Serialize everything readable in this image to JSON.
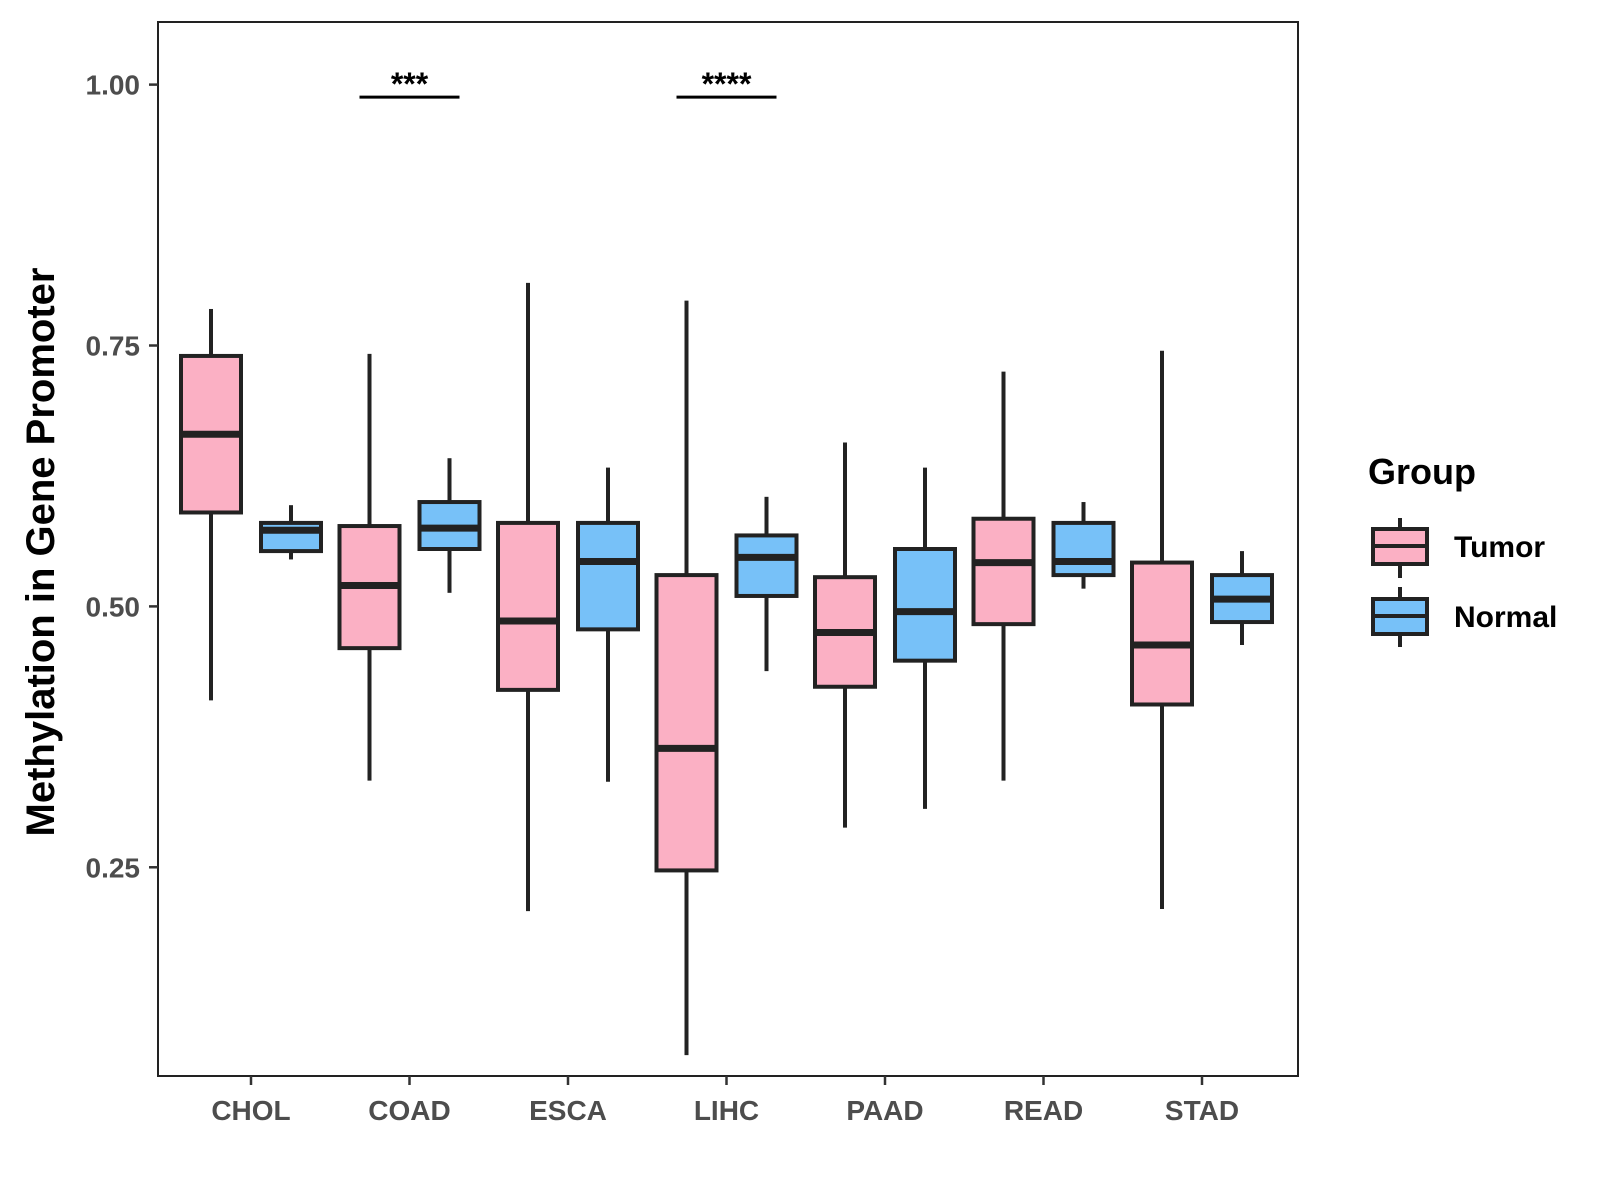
{
  "colors": {
    "tumor": "#fbb0c4",
    "normal": "#77c1f8",
    "stroke": "#222222"
  },
  "chart_data": {
    "type": "box",
    "ylabel": "Methylation in Gene Promoter",
    "xlabel": "",
    "ylim": [
      0.05,
      1.06
    ],
    "yticks": [
      0.25,
      0.5,
      0.75,
      1.0
    ],
    "ytick_labels": [
      "0.25",
      "0.50",
      "0.75",
      "1.00"
    ],
    "categories": [
      "CHOL",
      "COAD",
      "ESCA",
      "LIHC",
      "PAAD",
      "READ",
      "STAD"
    ],
    "legend": {
      "title": "Group",
      "entries": [
        "Tumor",
        "Normal"
      ]
    },
    "series": [
      {
        "name": "Tumor",
        "boxes": [
          {
            "min": 0.41,
            "q1": 0.59,
            "median": 0.665,
            "q3": 0.74,
            "max": 0.785
          },
          {
            "min": 0.333,
            "q1": 0.46,
            "median": 0.52,
            "q3": 0.577,
            "max": 0.742
          },
          {
            "min": 0.208,
            "q1": 0.42,
            "median": 0.486,
            "q3": 0.58,
            "max": 0.81
          },
          {
            "min": 0.07,
            "q1": 0.247,
            "median": 0.364,
            "q3": 0.53,
            "max": 0.793
          },
          {
            "min": 0.288,
            "q1": 0.423,
            "median": 0.475,
            "q3": 0.528,
            "max": 0.657
          },
          {
            "min": 0.333,
            "q1": 0.483,
            "median": 0.542,
            "q3": 0.584,
            "max": 0.725
          },
          {
            "min": 0.21,
            "q1": 0.406,
            "median": 0.463,
            "q3": 0.542,
            "max": 0.745
          }
        ]
      },
      {
        "name": "Normal",
        "boxes": [
          {
            "min": 0.545,
            "q1": 0.553,
            "median": 0.573,
            "q3": 0.58,
            "max": 0.597
          },
          {
            "min": 0.513,
            "q1": 0.555,
            "median": 0.575,
            "q3": 0.6,
            "max": 0.642
          },
          {
            "min": 0.332,
            "q1": 0.478,
            "median": 0.543,
            "q3": 0.58,
            "max": 0.633
          },
          {
            "min": 0.438,
            "q1": 0.51,
            "median": 0.547,
            "q3": 0.568,
            "max": 0.605
          },
          {
            "min": 0.306,
            "q1": 0.448,
            "median": 0.495,
            "q3": 0.555,
            "max": 0.633
          },
          {
            "min": 0.517,
            "q1": 0.53,
            "median": 0.543,
            "q3": 0.58,
            "max": 0.6
          },
          {
            "min": 0.463,
            "q1": 0.485,
            "median": 0.507,
            "q3": 0.53,
            "max": 0.553
          }
        ]
      }
    ],
    "annotations": [
      {
        "category": "COAD",
        "label": "***",
        "y": 0.988
      },
      {
        "category": "LIHC",
        "label": "****",
        "y": 0.988
      }
    ]
  }
}
